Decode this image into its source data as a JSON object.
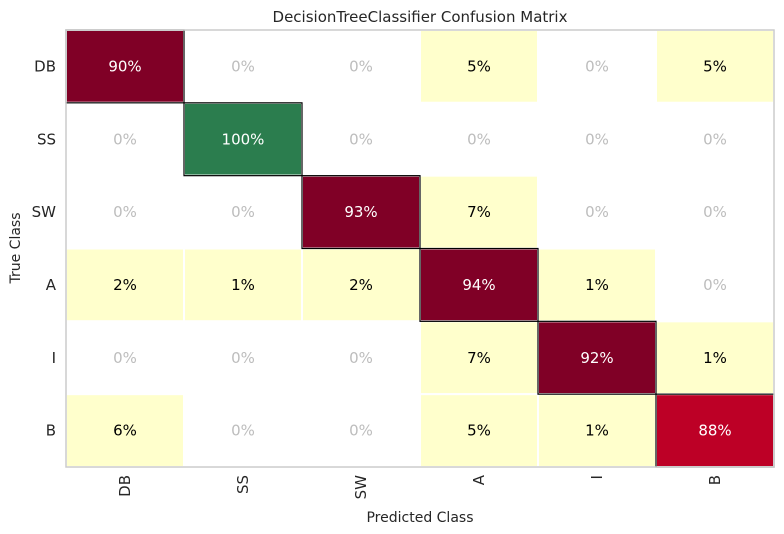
{
  "chart_data": {
    "type": "heatmap",
    "title": "DecisionTreeClassifier Confusion Matrix",
    "xlabel": "Predicted Class",
    "ylabel": "True Class",
    "x_categories": [
      "DB",
      "SS",
      "SW",
      "A",
      "I",
      "B"
    ],
    "y_categories": [
      "DB",
      "SS",
      "SW",
      "A",
      "I",
      "B"
    ],
    "values": [
      [
        90,
        0,
        0,
        5,
        0,
        5
      ],
      [
        0,
        100,
        0,
        0,
        0,
        0
      ],
      [
        0,
        0,
        93,
        7,
        0,
        0
      ],
      [
        2,
        1,
        2,
        94,
        1,
        0
      ],
      [
        0,
        0,
        0,
        7,
        92,
        1
      ],
      [
        6,
        0,
        0,
        5,
        1,
        88
      ]
    ],
    "labels": [
      [
        "90%",
        "0%",
        "0%",
        "5%",
        "0%",
        "5%"
      ],
      [
        "0%",
        "100%",
        "0%",
        "0%",
        "0%",
        "0%"
      ],
      [
        "0%",
        "0%",
        "93%",
        "7%",
        "0%",
        "0%"
      ],
      [
        "2%",
        "1%",
        "2%",
        "94%",
        "1%",
        "0%"
      ],
      [
        "0%",
        "0%",
        "0%",
        "7%",
        "92%",
        "1%"
      ],
      [
        "6%",
        "0%",
        "0%",
        "5%",
        "1%",
        "88%"
      ]
    ],
    "colors": {
      "zero_cell": "#ffffff",
      "low_cell": "#ffffcc",
      "perfect_cell": "#2b7d4e",
      "high_cell": "#800026",
      "b_diag_cell": "#bd0026",
      "zero_text": "#bdbdbd",
      "dark_text": "#000000",
      "light_text": "#ffffff",
      "frame": "#cccccc"
    }
  }
}
